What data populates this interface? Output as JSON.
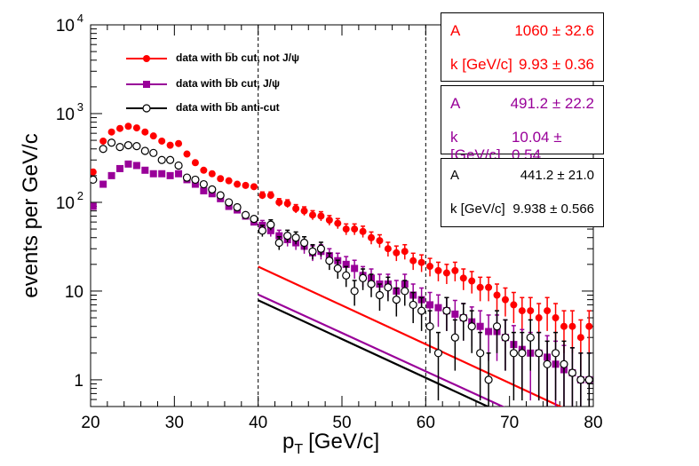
{
  "chart_data": {
    "type": "scatter",
    "title": "",
    "xlabel_main": "p",
    "xlabel_sub": "T",
    "xlabel_unit": "[GeV/c]",
    "ylabel": "events per GeV/c",
    "yscale": "log",
    "xlim": [
      20,
      80
    ],
    "ylim": [
      0.5,
      10000
    ],
    "x_ticks": [
      "20",
      "30",
      "40",
      "50",
      "60",
      "70",
      "80"
    ],
    "y_ticks": [
      {
        "base": "1",
        "exp": ""
      },
      {
        "base": "10",
        "exp": ""
      },
      {
        "base": "10",
        "exp": "2"
      },
      {
        "base": "10",
        "exp": "3"
      },
      {
        "base": "10",
        "exp": "4"
      }
    ],
    "vlines": [
      40,
      60
    ],
    "x": [
      20.3,
      21.5,
      22.5,
      23.5,
      24.5,
      25.5,
      26.5,
      27.5,
      28.5,
      29.5,
      30.5,
      31.5,
      32.5,
      33.5,
      34.5,
      35.5,
      36.5,
      37.5,
      38.5,
      39.5,
      40.5,
      41.5,
      42.5,
      43.5,
      44.5,
      45.5,
      46.5,
      47.5,
      48.5,
      49.5,
      50.5,
      51.5,
      52.5,
      53.5,
      54.5,
      55.5,
      56.5,
      57.5,
      58.5,
      59.5,
      60.5,
      61.5,
      62.5,
      63.5,
      64.5,
      65.5,
      66.5,
      67.5,
      68.5,
      69.5,
      70.5,
      71.5,
      72.5,
      73.5,
      74.5,
      75.5,
      76.5,
      77.5,
      78.5,
      79.5
    ],
    "series": [
      {
        "name": "data with b̅b cut, not J/ψ",
        "marker": "circle-filled",
        "color": "#ff0000",
        "values": [
          220,
          490,
          620,
          680,
          720,
          690,
          620,
          560,
          490,
          440,
          460,
          350,
          280,
          230,
          210,
          185,
          175,
          160,
          155,
          150,
          120,
          120,
          100,
          97,
          85,
          80,
          72,
          70,
          63,
          58,
          50,
          50,
          47,
          40,
          37,
          30,
          27,
          28,
          22,
          21,
          19,
          17,
          16,
          17,
          14,
          13,
          11,
          11,
          9,
          8,
          7,
          6,
          6,
          5,
          6,
          5,
          4,
          4,
          3,
          4
        ],
        "fit": {
          "A": 1060,
          "k": 9.93,
          "from": 40,
          "to": 80
        }
      },
      {
        "name": "data with b̅b cut, J/ψ",
        "marker": "square-filled",
        "color": "#990099",
        "values": [
          90,
          160,
          200,
          240,
          270,
          260,
          230,
          210,
          210,
          200,
          210,
          180,
          160,
          135,
          125,
          110,
          90,
          82,
          70,
          60,
          55,
          48,
          42,
          38,
          35,
          32,
          27,
          28,
          25,
          22,
          20,
          18,
          15,
          14,
          12,
          12,
          10,
          12,
          9,
          8,
          7,
          6.5,
          6,
          5.5,
          5,
          4.5,
          4,
          3.5,
          3.5,
          3,
          2.5,
          2.2,
          2,
          2,
          1.8,
          1.5,
          1.3,
          1.2,
          1,
          1
        ],
        "fit": {
          "A": 491.2,
          "k": 10.04,
          "from": 40,
          "to": 80
        }
      },
      {
        "name": "data with b̅b anti-cut",
        "marker": "circle-open",
        "color": "#000000",
        "values": [
          180,
          400,
          470,
          420,
          440,
          430,
          380,
          360,
          300,
          300,
          260,
          190,
          180,
          160,
          140,
          120,
          100,
          88,
          72,
          65,
          48,
          56,
          35,
          42,
          40,
          35,
          28,
          30,
          22,
          18,
          15,
          10,
          14,
          12,
          9,
          11,
          8,
          10,
          7,
          6,
          4,
          2,
          6,
          3,
          5,
          4,
          2,
          1,
          4,
          3,
          2,
          2,
          3,
          2,
          1.5,
          2,
          1.5,
          1.2,
          1,
          1
        ],
        "fit": {
          "A": 441.2,
          "k": 9.938,
          "from": 40,
          "to": 80
        }
      }
    ],
    "stat_boxes": [
      {
        "color": "#ff0000",
        "a_label": "A",
        "a_value": "1060 ± 32.6",
        "k_label": "k [GeV/c]",
        "k_value": "9.93 ± 0.36"
      },
      {
        "color": "#990099",
        "a_label": "A",
        "a_value": "491.2 ± 22.2",
        "k_label": "k [GeV/c]",
        "k_value": "10.04 ± 0.54"
      },
      {
        "color": "#000000",
        "a_label": "A",
        "a_value": "441.2 ± 21.0",
        "k_label": "k [GeV/c]",
        "k_value": "9.938 ± 0.566"
      }
    ],
    "legend_position": "top-left",
    "grid": false
  }
}
